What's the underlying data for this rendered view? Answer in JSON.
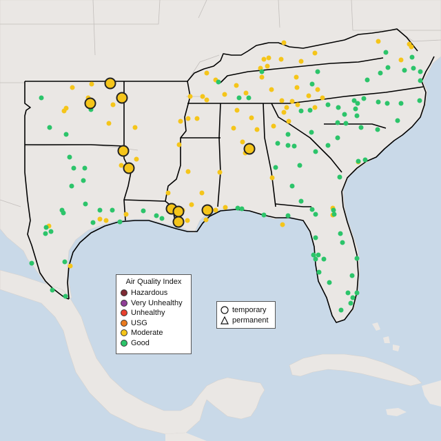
{
  "legend": {
    "aqi_title": "Air Quality Index",
    "aqi_items": [
      {
        "label": "Hazardous",
        "color": "#7e2a33"
      },
      {
        "label": "Very Unhealthy",
        "color": "#8f3f97"
      },
      {
        "label": "Unhealthy",
        "color": "#e8402e"
      },
      {
        "label": "USG",
        "color": "#e97a1f"
      },
      {
        "label": "Moderate",
        "color": "#f5c51a"
      },
      {
        "label": "Good",
        "color": "#2cc46a"
      }
    ],
    "type_items": [
      {
        "label": "temporary",
        "icon": "circle-icon"
      },
      {
        "label": "permanent",
        "icon": "triangle-icon"
      }
    ]
  },
  "colors": {
    "water": "#c9d9e8",
    "land": "#eae7e4",
    "border": "#c2bebb",
    "region_outline": "#000000",
    "moderate": "#f5c51a",
    "good": "#2cc46a"
  }
}
